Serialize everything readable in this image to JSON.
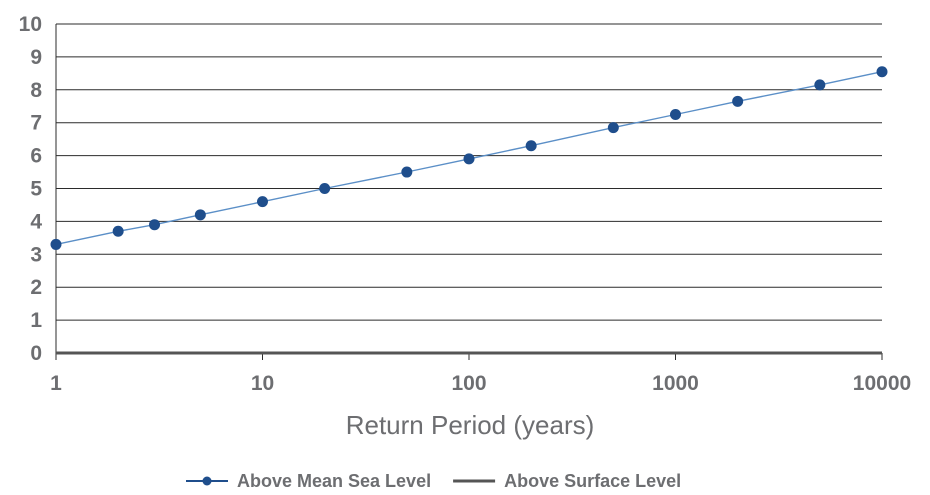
{
  "chart_data": {
    "type": "line",
    "xscale": "log",
    "xlim": [
      1,
      10000
    ],
    "ylim": [
      0,
      10
    ],
    "x_ticks": [
      "1",
      "10",
      "100",
      "1000",
      "10000"
    ],
    "y_ticks": [
      "0",
      "1",
      "2",
      "3",
      "4",
      "5",
      "6",
      "7",
      "8",
      "9",
      "10"
    ],
    "xlabel": "Return Period (years)",
    "ylabel": "",
    "grid": "horizontal",
    "legend_position": "bottom",
    "series": [
      {
        "name": "Above Mean Sea Level",
        "color": "#1f4e8c",
        "markers": true,
        "x": [
          1,
          2,
          3,
          5,
          10,
          20,
          50,
          100,
          200,
          500,
          1000,
          2000,
          5000,
          10000
        ],
        "y": [
          3.3,
          3.7,
          3.9,
          4.2,
          4.6,
          5.0,
          5.5,
          5.9,
          6.3,
          6.85,
          7.25,
          7.65,
          8.15,
          8.55
        ]
      },
      {
        "name": "Above Surface Level",
        "color": "#555555",
        "markers": false,
        "x": [
          1,
          10000
        ],
        "y": [
          0,
          0
        ]
      }
    ]
  }
}
